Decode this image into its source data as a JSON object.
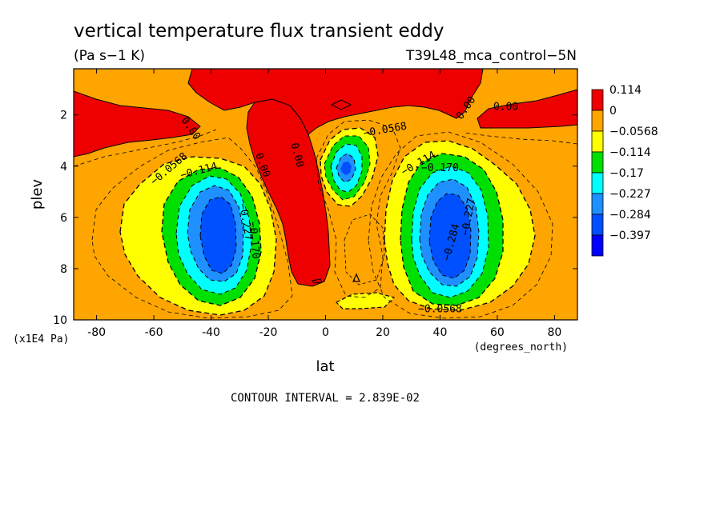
{
  "chart_data": {
    "type": "contour",
    "title": "vertical temperature flux transient eddy",
    "units": "(Pa s−1 K)",
    "dataset": "T39L48_mca_control−5N",
    "xlabel": "lat",
    "xunits": "(degrees_north)",
    "ylabel": "plev",
    "yunits": "(x1E4 Pa)",
    "xlim": [
      -88,
      88
    ],
    "ylim": [
      10,
      0.2
    ],
    "x_ticks": [
      -80,
      -60,
      -40,
      -20,
      0,
      20,
      40,
      60,
      80
    ],
    "y_ticks": [
      2,
      4,
      6,
      8,
      10
    ],
    "contour_interval_text": "CONTOUR INTERVAL = 2.839E-02",
    "legend": {
      "levels": [
        "0.114",
        "0",
        "−0.0568",
        "−0.114",
        "−0.17",
        "−0.227",
        "−0.284",
        "−0.397"
      ],
      "colors": [
        "#ee0000",
        "#ffa500",
        "#ffff00",
        "#00e000",
        "#00ffff",
        "#1e90ff",
        "#0050ff",
        "#0000ff"
      ]
    },
    "fill_levels": [
      {
        "level": 0,
        "color": "#ee0000"
      },
      {
        "level": -0.0568,
        "color": "#ffa500"
      },
      {
        "level": -0.114,
        "color": "#ffff00"
      },
      {
        "level": -0.17,
        "color": "#00e000"
      },
      {
        "level": -0.227,
        "color": "#00ffff"
      },
      {
        "level": -0.284,
        "color": "#1e90ff"
      },
      {
        "level": -0.397,
        "color": "#0050ff"
      }
    ],
    "contour_labels": [
      {
        "text": "0.00",
        "lat": -48,
        "plev": 2.6,
        "angle": 55
      },
      {
        "text": "0.00",
        "lat": -23,
        "plev": 4.0,
        "angle": 70
      },
      {
        "text": "0.00",
        "lat": -11,
        "plev": 3.6,
        "angle": 75
      },
      {
        "text": "0.00",
        "lat": 50,
        "plev": 1.8,
        "angle": -55
      },
      {
        "text": "0.00",
        "lat": 63,
        "plev": 1.8,
        "angle": 0
      },
      {
        "text": "−0.0568",
        "lat": 21,
        "plev": 2.7,
        "angle": -10
      },
      {
        "text": "−0.0568",
        "lat": -54,
        "plev": 4.2,
        "angle": -40
      },
      {
        "text": "−0.114",
        "lat": -44,
        "plev": 4.3,
        "angle": -15
      },
      {
        "text": "−0.114",
        "lat": 33,
        "plev": 4.0,
        "angle": -30
      },
      {
        "text": "−0.170",
        "lat": 40,
        "plev": 4.2,
        "angle": 0
      },
      {
        "text": "−0.227",
        "lat": -29,
        "plev": 6.2,
        "angle": 80
      },
      {
        "text": "−0.170",
        "lat": -26,
        "plev": 6.9,
        "angle": 85
      },
      {
        "text": "−0.284",
        "lat": 45,
        "plev": 7.0,
        "angle": -75
      },
      {
        "text": "−0.227",
        "lat": 51,
        "plev": 6.0,
        "angle": -80
      },
      {
        "text": "−0.0568",
        "lat": 40,
        "plev": 9.7,
        "angle": 0
      }
    ]
  }
}
